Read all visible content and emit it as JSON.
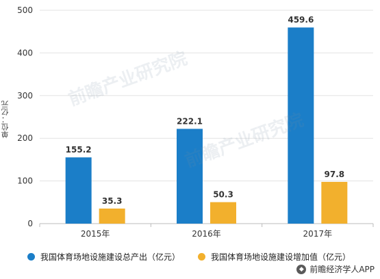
{
  "chart_data": {
    "type": "bar",
    "categories": [
      "2015年",
      "2016年",
      "2017年"
    ],
    "series": [
      {
        "name": "我国体育场地设施建设总产出（亿元）",
        "values": [
          155.2,
          222.1,
          459.6
        ],
        "color": "#1b7ec8"
      },
      {
        "name": "我国体育场地设施建设增加值（亿元）",
        "values": [
          35.3,
          50.3,
          97.8
        ],
        "color": "#f2b02d"
      }
    ],
    "ylabel": "单位：亿元",
    "ylim": [
      0,
      500
    ],
    "yticks": [
      0,
      100,
      200,
      300,
      400,
      500
    ],
    "grid": true,
    "legend_position": "bottom-left"
  },
  "watermark": {
    "text": "前瞻产业研究院"
  },
  "footer": {
    "icon": "qianzhan-logo-icon",
    "text": "前瞻经济学人APP"
  }
}
